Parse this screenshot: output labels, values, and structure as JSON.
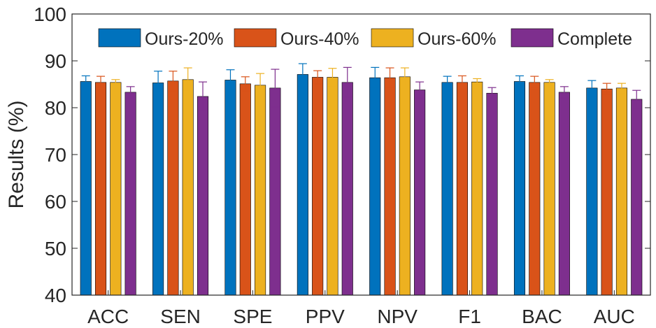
{
  "chart_data": {
    "type": "bar",
    "ylabel": "Results (%)",
    "xlabel": "",
    "ylim": [
      40,
      100
    ],
    "yticks": [
      "40",
      "50",
      "60",
      "70",
      "80",
      "90",
      "100"
    ],
    "categories": [
      "ACC",
      "SEN",
      "SPE",
      "PPV",
      "NPV",
      "F1",
      "BAC",
      "AUC"
    ],
    "legend_position": "top",
    "grid": false,
    "series": [
      {
        "name": "Ours-20%",
        "color": "#0072BD",
        "values": [
          85.6,
          85.3,
          85.9,
          87.1,
          86.4,
          85.4,
          85.6,
          84.2
        ],
        "errors": [
          1.2,
          2.5,
          2.2,
          2.3,
          2.2,
          1.3,
          1.2,
          1.6
        ]
      },
      {
        "name": "Ours-40%",
        "color": "#D95319",
        "values": [
          85.4,
          85.7,
          85.1,
          86.5,
          86.4,
          85.4,
          85.4,
          84.0
        ],
        "errors": [
          1.3,
          2.1,
          1.5,
          1.4,
          2.1,
          1.4,
          1.3,
          1.2
        ]
      },
      {
        "name": "Ours-60%",
        "color": "#EDB120",
        "values": [
          85.4,
          86.0,
          84.8,
          86.5,
          86.6,
          85.5,
          85.4,
          84.2
        ],
        "errors": [
          0.6,
          2.5,
          2.5,
          1.9,
          1.9,
          0.7,
          0.6,
          1.0
        ]
      },
      {
        "name": "Complete",
        "color": "#7E2F8E",
        "values": [
          83.3,
          82.4,
          84.2,
          85.4,
          83.8,
          83.1,
          83.3,
          81.8
        ],
        "errors": [
          1.2,
          3.1,
          4.0,
          3.2,
          1.7,
          1.2,
          1.2,
          1.9
        ]
      }
    ]
  }
}
